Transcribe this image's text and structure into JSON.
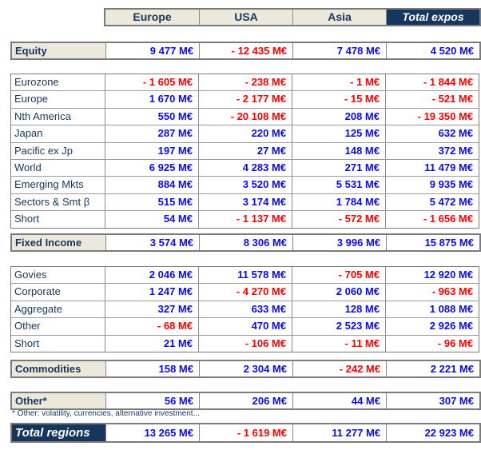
{
  "columns": [
    {
      "id": "europe",
      "label": "Europe"
    },
    {
      "id": "usa",
      "label": "USA"
    },
    {
      "id": "asia",
      "label": "Asia"
    },
    {
      "id": "total",
      "label": "Total expos"
    }
  ],
  "blocks": [
    {
      "kind": "summary",
      "rows": [
        {
          "label": "Equity",
          "values": [
            "9 477 M€",
            "- 12 435 M€",
            "7 478 M€",
            "4 520 M€"
          ]
        }
      ]
    },
    {
      "kind": "detail",
      "rows": [
        {
          "label": "Eurozone",
          "values": [
            "- 1 605 M€",
            "- 238 M€",
            "- 1 M€",
            "- 1 844 M€"
          ]
        },
        {
          "label": "Europe",
          "values": [
            "1 670 M€",
            "- 2 177 M€",
            "- 15 M€",
            "- 521 M€"
          ]
        },
        {
          "label": "Nth America",
          "values": [
            "550 M€",
            "- 20 108 M€",
            "208 M€",
            "- 19 350 M€"
          ]
        },
        {
          "label": "Japan",
          "values": [
            "287 M€",
            "220 M€",
            "125 M€",
            "632 M€"
          ]
        },
        {
          "label": "Pacific ex Jp",
          "values": [
            "197 M€",
            "27 M€",
            "148 M€",
            "372 M€"
          ]
        },
        {
          "label": "World",
          "values": [
            "6 925 M€",
            "4 283 M€",
            "271 M€",
            "11 479 M€"
          ]
        },
        {
          "label": "Emerging Mkts",
          "values": [
            "884 M€",
            "3 520 M€",
            "5 531 M€",
            "9 935 M€"
          ]
        },
        {
          "label": "Sectors & Smt β",
          "values": [
            "515 M€",
            "3 174 M€",
            "1 784 M€",
            "5 472 M€"
          ]
        },
        {
          "label": "Short",
          "values": [
            "54 M€",
            "- 1 137 M€",
            "- 572 M€",
            "- 1 656 M€"
          ]
        }
      ]
    },
    {
      "kind": "summary",
      "rows": [
        {
          "label": "Fixed Income",
          "values": [
            "3 574 M€",
            "8 306 M€",
            "3 996 M€",
            "15 875 M€"
          ]
        }
      ]
    },
    {
      "kind": "detail",
      "rows": [
        {
          "label": "Govies",
          "values": [
            "2 046 M€",
            "11 578 M€",
            "- 705 M€",
            "12 920 M€"
          ]
        },
        {
          "label": "Corporate",
          "values": [
            "1 247 M€",
            "- 4 270 M€",
            "2 060 M€",
            "- 963 M€"
          ]
        },
        {
          "label": "Aggregate",
          "values": [
            "327 M€",
            "633 M€",
            "128 M€",
            "1 088 M€"
          ]
        },
        {
          "label": "Other",
          "values": [
            "- 68 M€",
            "470 M€",
            "2 523 M€",
            "2 926 M€"
          ]
        },
        {
          "label": "Short",
          "values": [
            "21 M€",
            "- 106 M€",
            "- 11 M€",
            "- 96 M€"
          ]
        }
      ]
    },
    {
      "kind": "summary",
      "rows": [
        {
          "label": "Commodities",
          "values": [
            "158 M€",
            "2 304 M€",
            "- 242 M€",
            "2 221 M€"
          ]
        }
      ]
    },
    {
      "kind": "summary",
      "rows": [
        {
          "label": "Other*",
          "values": [
            "56 M€",
            "206 M€",
            "44 M€",
            "307 M€"
          ]
        }
      ]
    },
    {
      "kind": "grand",
      "rows": [
        {
          "label": "Total regions",
          "values": [
            "13 265 M€",
            "- 1 619 M€",
            "11 277 M€",
            "22 923 M€"
          ]
        }
      ]
    }
  ],
  "footnote": "* Other: volatility, currencies, alternative investment...",
  "colors": {
    "positive": "#0B0BE6",
    "negative": "#FE0000",
    "navy": "#17365D",
    "beige": "#ECE9DC",
    "border": "#7B7B7B"
  }
}
